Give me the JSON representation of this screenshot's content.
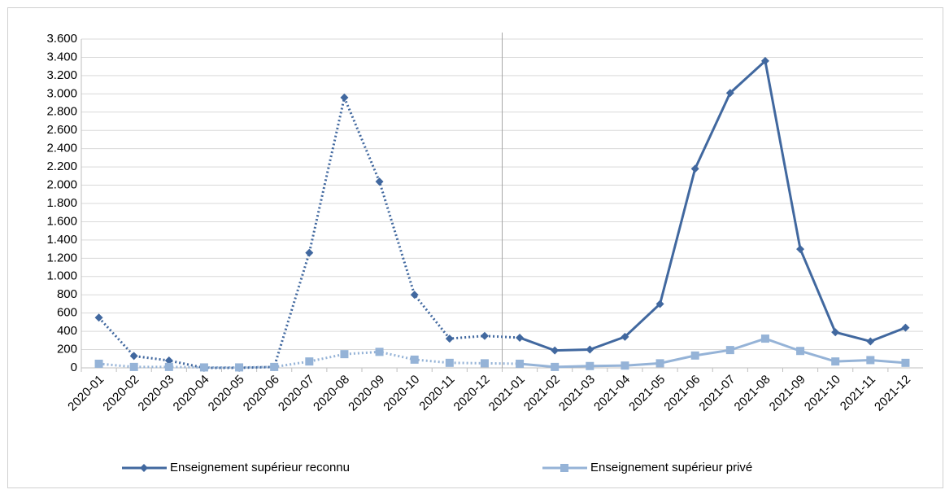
{
  "chart_data": {
    "type": "line",
    "categories": [
      "2020-01",
      "2020-02",
      "2020-03",
      "2020-04",
      "2020-05",
      "2020-06",
      "2020-07",
      "2020-08",
      "2020-09",
      "2020-10",
      "2020-11",
      "2020-12",
      "2021-01",
      "2021-02",
      "2021-03",
      "2021-04",
      "2021-05",
      "2021-06",
      "2021-07",
      "2021-08",
      "2021-09",
      "2021-10",
      "2021-11",
      "2021-12"
    ],
    "series": [
      {
        "name": "Enseignement supérieur reconnu",
        "color": "#41689f",
        "marker": "diamond",
        "values": [
          550,
          130,
          80,
          0,
          0,
          10,
          1260,
          2960,
          2040,
          800,
          320,
          350,
          330,
          190,
          200,
          340,
          700,
          2180,
          3010,
          3360,
          1300,
          390,
          290,
          440
        ]
      },
      {
        "name": "Enseignement supérieur privé",
        "color": "#95b3d7",
        "marker": "square",
        "values": [
          45,
          10,
          10,
          5,
          5,
          10,
          70,
          150,
          175,
          90,
          55,
          50,
          45,
          10,
          20,
          25,
          50,
          135,
          195,
          320,
          185,
          70,
          85,
          55
        ]
      }
    ],
    "dotted_until": "2021-01",
    "divider_before": "2021-01",
    "ylim": [
      0,
      3600
    ],
    "yticks": [
      0,
      200,
      400,
      600,
      800,
      {
        "value": 1000,
        "label": "1.000"
      },
      {
        "value": 1200,
        "label": "1.200"
      },
      {
        "value": 1400,
        "label": "1.400"
      },
      {
        "value": 1600,
        "label": "1.600"
      },
      {
        "value": 1800,
        "label": "1.800"
      },
      {
        "value": 2000,
        "label": "2.000"
      },
      {
        "value": 2200,
        "label": "2.200"
      },
      {
        "value": 2400,
        "label": "2.400"
      },
      {
        "value": 2600,
        "label": "2.600"
      },
      {
        "value": 2800,
        "label": "2.800"
      },
      {
        "value": 3000,
        "label": "3.000"
      },
      {
        "value": 3200,
        "label": "3.200"
      },
      {
        "value": 3400,
        "label": "3.400"
      },
      {
        "value": 3600,
        "label": "3.600"
      }
    ],
    "grid": true,
    "legend": "bottom"
  }
}
